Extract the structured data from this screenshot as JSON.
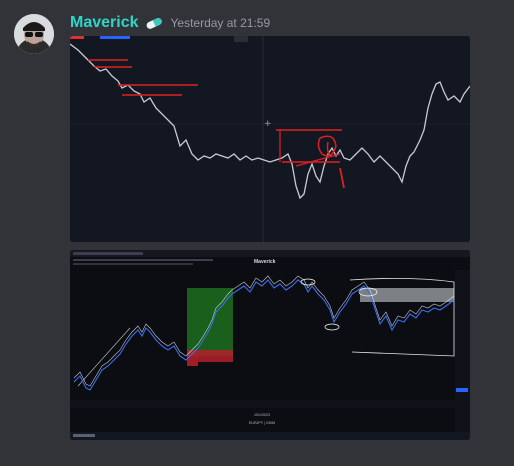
{
  "message": {
    "author": "Maverick",
    "timestamp": "Yesterday at 21:59",
    "badge_icon": "pill-icon",
    "colors": {
      "username": "#2ed6c9",
      "background": "#313338",
      "timestamp": "#949ba4"
    }
  },
  "attachments": [
    {
      "icon": "chart-image-annotated-red"
    },
    {
      "title": "Maverick",
      "center_date": "10/1/2023",
      "center_caption": "EURJPY | 240M"
    }
  ]
}
